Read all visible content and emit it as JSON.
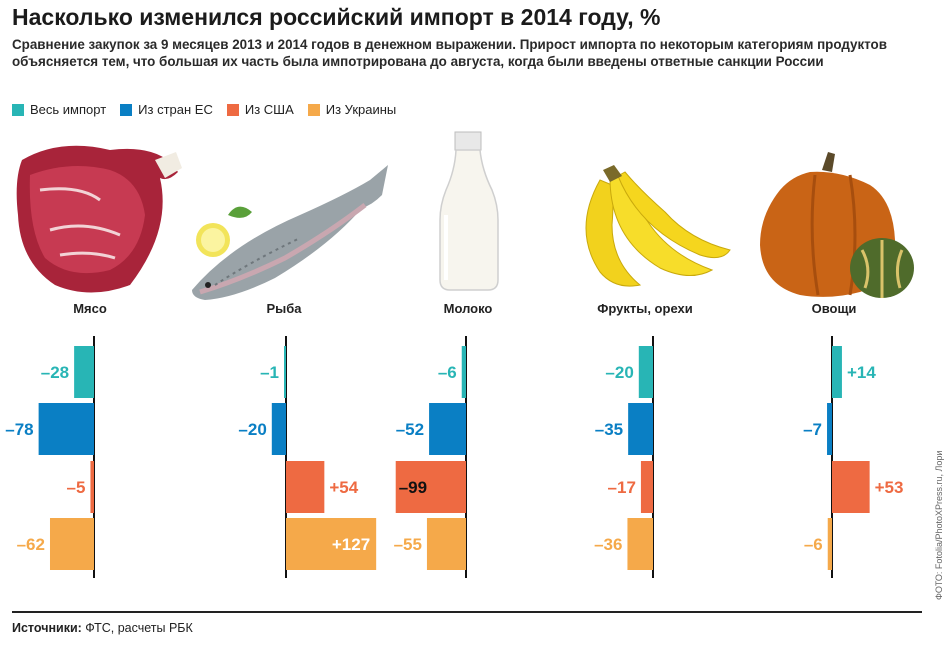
{
  "title": "Насколько изменился российский импорт в 2014 году, %",
  "subtitle": "Сравнение закупок за 9 месяцев 2013 и 2014 годов в денежном выражении. Прирост импорта по некоторым категориям продуктов объясняется тем, что большая их часть была импотрирована до августа, когда были введены ответные санкции России",
  "source_label": "Источники:",
  "source_text": "ФТС, расчеты РБК",
  "photo_credit": "ФОТО: Fotolia/PhotoXPress.ru, Лори",
  "colors": {
    "all": "#28b5b5",
    "eu": "#0a7fc4",
    "usa": "#ee6a42",
    "ukraine": "#f5a94a"
  },
  "chart_data": {
    "type": "bar",
    "orientation": "horizontal",
    "series": [
      {
        "name": "Весь импорт",
        "color": "#28b5b5"
      },
      {
        "name": "Из стран ЕС",
        "color": "#0a7fc4"
      },
      {
        "name": "Из США",
        "color": "#ee6a42"
      },
      {
        "name": "Из Украины",
        "color": "#f5a94a"
      }
    ],
    "groups": [
      {
        "category": "Мясо",
        "icon": "meat-icon",
        "values": [
          -28,
          -78,
          -5,
          -62
        ],
        "labels": [
          "–28",
          "–78",
          "–5",
          "–62"
        ]
      },
      {
        "category": "Рыба",
        "icon": "fish-icon",
        "values": [
          -1,
          -20,
          54,
          127
        ],
        "labels": [
          "–1",
          "–20",
          "+54",
          "+127"
        ]
      },
      {
        "category": "Молоко",
        "icon": "milk-bottle-icon",
        "values": [
          -6,
          -52,
          -99,
          -55
        ],
        "labels": [
          "–6",
          "–52",
          "–99",
          "–55"
        ]
      },
      {
        "category": "Фрукты, орехи",
        "icon": "banana-icon",
        "values": [
          -20,
          -35,
          -17,
          -36
        ],
        "labels": [
          "–20",
          "–35",
          "–17",
          "–36"
        ]
      },
      {
        "category": "Овощи",
        "icon": "pumpkin-icon",
        "values": [
          14,
          -7,
          53,
          -6
        ],
        "labels": [
          "+14",
          "–7",
          "+53",
          "–6"
        ]
      }
    ]
  }
}
